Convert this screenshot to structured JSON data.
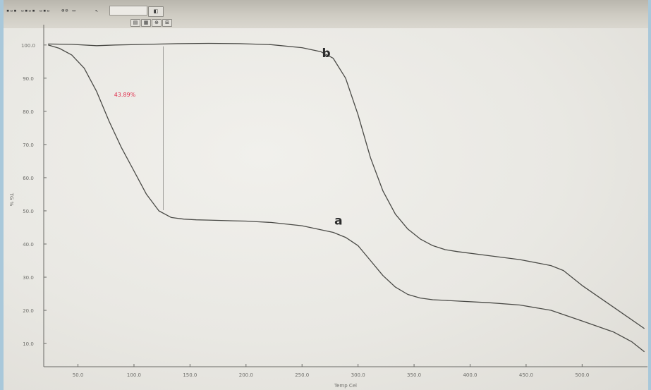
{
  "toolbar": {
    "buttons": [
      "◧",
      "▤",
      "▦",
      "⊕",
      "⊞"
    ],
    "icons": [
      "zoom-icon",
      "axis-icon",
      "grid-icon",
      "cursor-icon",
      "layout-icon"
    ]
  },
  "chart_data": {
    "type": "line",
    "title": "",
    "xlabel": "Temp Cel",
    "ylabel": "TG %",
    "xlim": [
      35,
      1005
    ],
    "ylim": [
      3,
      104
    ],
    "x_ticks": [
      "50.0",
      "100.0",
      "150.0",
      "200.0",
      "250.0",
      "300.0",
      "350.0",
      "400.0",
      "450.0",
      "500.0"
    ],
    "y_ticks": [
      "100.0",
      "90.0",
      "80.0",
      "70.0",
      "60.0",
      "50.0",
      "40.0",
      "30.0",
      "20.0",
      "10.0"
    ],
    "grid": false,
    "series": [
      {
        "name": "a",
        "color": "#4a4a46",
        "x": [
          42,
          60,
          80,
          100,
          120,
          140,
          160,
          180,
          200,
          220,
          240,
          260,
          280,
          300,
          320,
          340,
          360,
          380,
          400,
          450,
          500,
          520,
          540,
          560,
          580,
          600,
          620,
          640,
          660,
          680,
          700,
          750,
          800,
          850,
          900,
          950,
          980,
          1000
        ],
        "values": [
          100,
          99,
          97,
          93,
          86,
          77,
          69,
          62,
          55,
          50,
          48,
          47.5,
          47.3,
          47.2,
          47.1,
          47,
          46.9,
          46.7,
          46.5,
          45.5,
          43.5,
          42,
          39.5,
          35,
          30.5,
          27,
          24.8,
          23.7,
          23.2,
          23,
          22.8,
          22.3,
          21.6,
          20,
          16.8,
          13.5,
          10.5,
          7.5
        ]
      },
      {
        "name": "b",
        "color": "#4a4a46",
        "x": [
          42,
          80,
          120,
          150,
          200,
          250,
          300,
          350,
          400,
          450,
          480,
          500,
          520,
          540,
          560,
          580,
          600,
          620,
          640,
          660,
          680,
          700,
          750,
          800,
          850,
          870,
          900,
          950,
          1000
        ],
        "values": [
          100.3,
          100.2,
          99.8,
          100,
          100.2,
          100.4,
          100.5,
          100.4,
          100.1,
          99.2,
          98,
          96,
          90,
          79,
          66,
          56,
          49,
          44.5,
          41.5,
          39.5,
          38.3,
          37.7,
          36.5,
          35.3,
          33.5,
          32,
          27.5,
          21,
          14.5
        ]
      }
    ],
    "annotations": [
      {
        "text": "43.89%",
        "color": "#e0304e"
      }
    ],
    "series_labels": [
      "b",
      "a"
    ]
  }
}
